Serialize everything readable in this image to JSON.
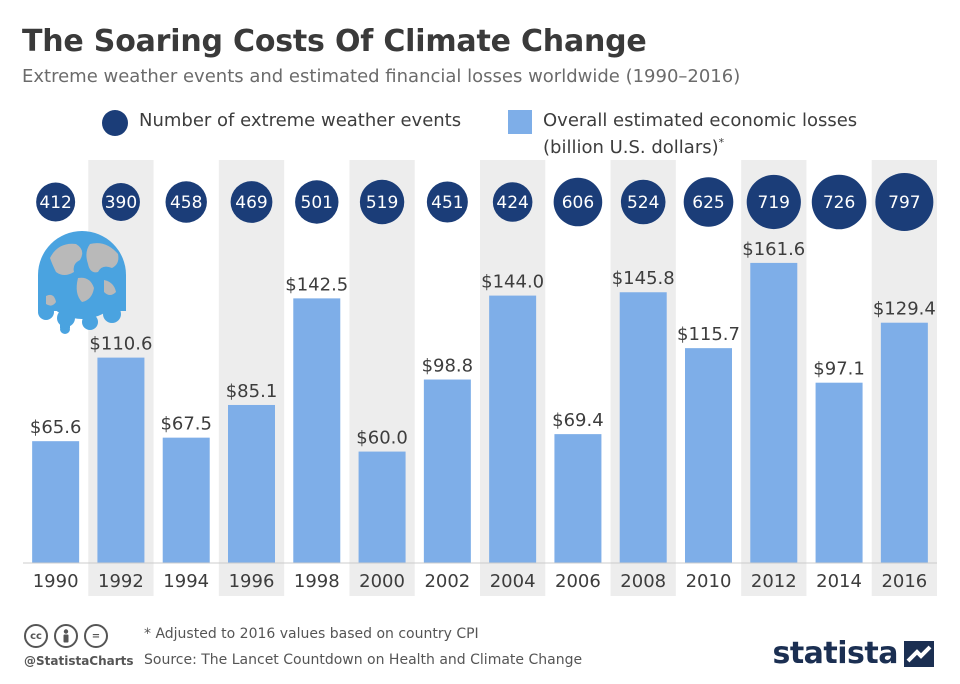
{
  "header": {
    "title": "The Soaring Costs Of Climate Change",
    "subtitle": "Extreme weather events and estimated financial losses worldwide (1990–2016)"
  },
  "legend": {
    "events_label": "Number of extreme weather events",
    "losses_label_line1": "Overall estimated economic losses",
    "losses_label_line2": "(billion U.S. dollars)",
    "losses_marker": "*"
  },
  "colors": {
    "events": "#1b3d78",
    "losses": "#7eaee8",
    "stripe": "#ededed",
    "baseline": "#cccccc"
  },
  "chart_data": {
    "type": "bar",
    "categories": [
      "1990",
      "1992",
      "1994",
      "1996",
      "1998",
      "2000",
      "2002",
      "2004",
      "2006",
      "2008",
      "2010",
      "2012",
      "2014",
      "2016"
    ],
    "series": [
      {
        "name": "Overall estimated economic losses (billion U.S. dollars)",
        "values": [
          65.6,
          110.6,
          67.5,
          85.1,
          142.5,
          60.0,
          98.8,
          144.0,
          69.4,
          145.8,
          115.7,
          161.6,
          97.1,
          129.4
        ],
        "value_labels": [
          "$65.6",
          "$110.6",
          "$67.5",
          "$85.1",
          "$142.5",
          "$60.0",
          "$98.8",
          "$144.0",
          "$69.4",
          "$145.8",
          "$115.7",
          "$161.6",
          "$97.1",
          "$129.4"
        ]
      },
      {
        "name": "Number of extreme weather events",
        "values": [
          412,
          390,
          458,
          469,
          501,
          519,
          451,
          424,
          606,
          524,
          625,
          719,
          726,
          797
        ],
        "value_labels": [
          "412",
          "390",
          "458",
          "469",
          "501",
          "519",
          "451",
          "424",
          "606",
          "524",
          "625",
          "719",
          "726",
          "797"
        ]
      }
    ],
    "ylim": [
      0,
      165
    ],
    "grid": false,
    "legend_position": "top"
  },
  "footer": {
    "note": "* Adjusted to 2016 values based on country CPI",
    "source": "Source: The Lancet Countdown on Health and Climate Change",
    "handle": "@StatistaCharts",
    "logo": "statista",
    "cc_icons": [
      "cc",
      "by",
      "="
    ]
  },
  "icons": {
    "globe": "melting-globe-icon",
    "logo_mark": "statista-logo-icon"
  }
}
